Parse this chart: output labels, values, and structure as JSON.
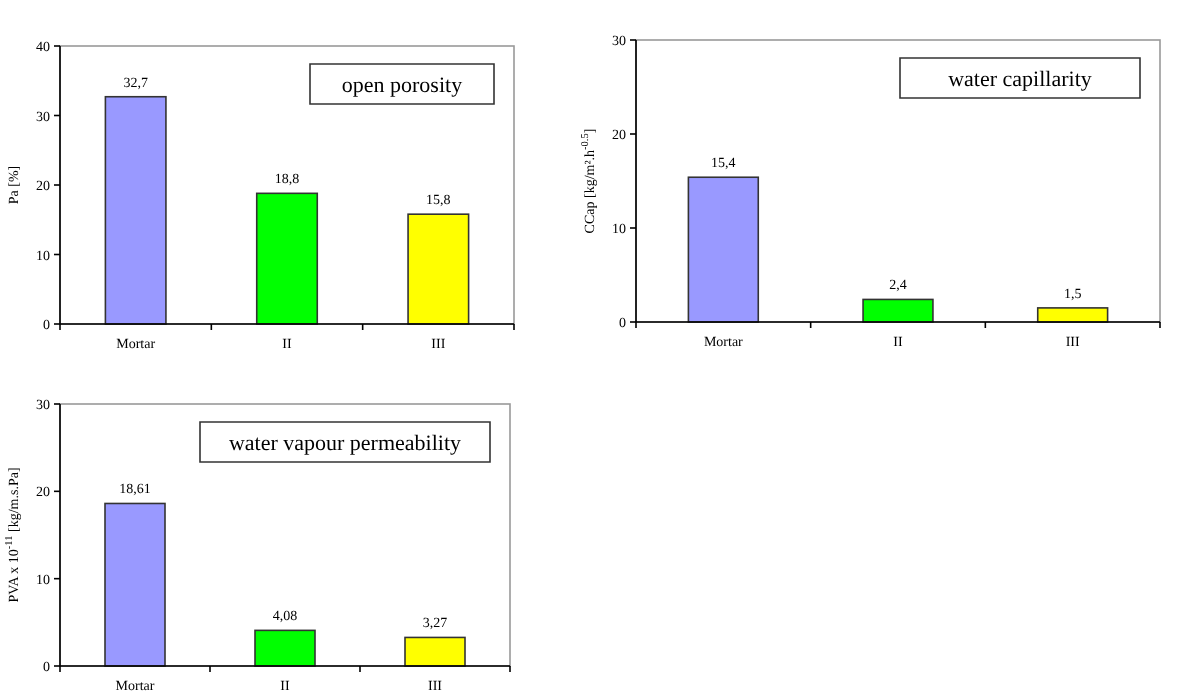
{
  "chart_data": [
    {
      "type": "bar",
      "title": "open porosity",
      "ylabel": "Pa  [%]",
      "categories": [
        "Mortar",
        "II",
        "III"
      ],
      "values": [
        32.7,
        18.8,
        15.8
      ],
      "value_labels": [
        "32,7",
        "18,8",
        "15,8"
      ],
      "colors": [
        "#9999ff",
        "#00ff00",
        "#ffff00"
      ],
      "ylim": [
        0,
        40
      ],
      "yticks": [
        0,
        10,
        20,
        30,
        40
      ],
      "grid": false
    },
    {
      "type": "bar",
      "title": "water capillarity",
      "ylabel": "CCap [kg/m².h$^{-0.5}$]",
      "categories": [
        "Mortar",
        "II",
        "III"
      ],
      "values": [
        15.4,
        2.4,
        1.5
      ],
      "value_labels": [
        "15,4",
        "2,4",
        "1,5"
      ],
      "colors": [
        "#9999ff",
        "#00ff00",
        "#ffff00"
      ],
      "ylim": [
        0,
        30
      ],
      "yticks": [
        0,
        10,
        20,
        30
      ],
      "grid": false
    },
    {
      "type": "bar",
      "title": "water vapour permeability",
      "ylabel": "PVA x 10$^{-11}$ [kg/m.s.Pa]",
      "categories": [
        "Mortar",
        "II",
        "III"
      ],
      "values": [
        18.61,
        4.08,
        3.27
      ],
      "value_labels": [
        "18,61",
        "4,08",
        "3,27"
      ],
      "colors": [
        "#9999ff",
        "#00ff00",
        "#ffff00"
      ],
      "ylim": [
        0,
        30
      ],
      "yticks": [
        0,
        10,
        20,
        30
      ],
      "grid": false
    }
  ]
}
